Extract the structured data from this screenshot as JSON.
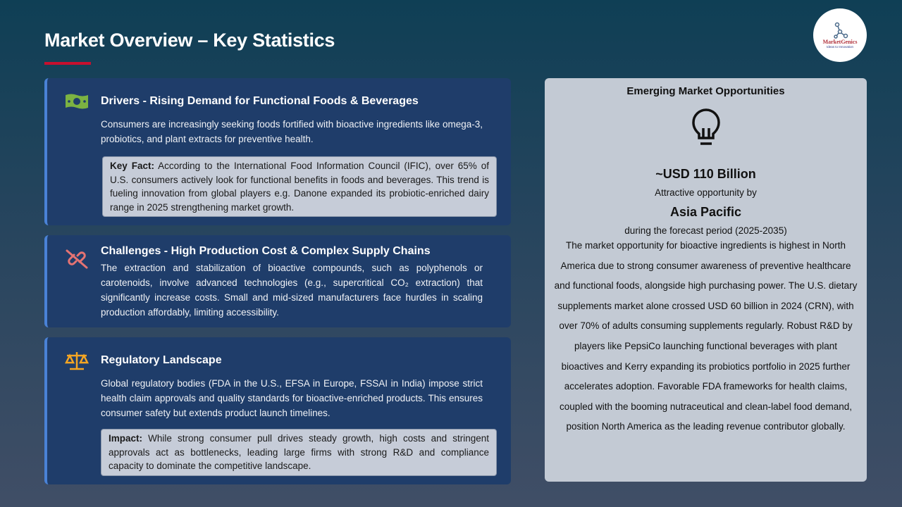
{
  "header": {
    "title": "Market Overview – Key Statistics",
    "logo_name": "MarketGenics",
    "logo_tagline": "Ideas to Innovation"
  },
  "drivers": {
    "icon": "money-icon",
    "title": "Drivers - Rising Demand for Functional Foods & Beverages",
    "text": "Consumers are increasingly seeking foods fortified with bioactive ingredients like omega-3, probiotics, and plant extracts for preventive health.",
    "fact_label": "Key Fact:",
    "fact": " According to the International Food Information Council (IFIC), over 65% of U.S. consumers actively look for functional benefits in foods and beverages. This trend is fueling innovation from global players e.g. Danone expanded its probiotic-enriched dairy range in 2025 strengthening market growth."
  },
  "challenges": {
    "icon": "broken-link-icon",
    "title": "Challenges - High Production Cost & Complex Supply Chains",
    "text": "The extraction and stabilization of bioactive compounds, such as polyphenols or carotenoids, involve advanced technologies (e.g., supercritical CO₂ extraction) that significantly increase costs. Small and mid-sized manufacturers face hurdles in scaling production affordably, limiting accessibility."
  },
  "regulatory": {
    "icon": "scales-icon",
    "title": "Regulatory Landscape",
    "text": "Global regulatory bodies (FDA in the U.S., EFSA in Europe, FSSAI in India) impose strict health claim approvals and quality standards for bioactive-enriched products. This ensures consumer safety but extends product launch timelines.",
    "impact_label": "Impact:",
    "impact": " While strong consumer pull drives steady growth, high costs and stringent approvals act as bottlenecks, leading large firms with strong R&D and compliance capacity to dominate the competitive landscape."
  },
  "opportunity": {
    "title": "Emerging Market Opportunities",
    "icon": "lightbulb-icon",
    "amount": "~USD 110 Billion",
    "sub": "Attractive opportunity by",
    "region": "Asia Pacific",
    "period": "during the forecast period (2025-2035)",
    "description": "The market opportunity for bioactive ingredients is highest in North America due to strong consumer awareness of preventive healthcare and functional foods, alongside high purchasing power. The U.S. dietary supplements market alone crossed USD 60 billion in 2024 (CRN), with over 70% of adults consuming supplements regularly. Robust R&D by players like PepsiCo launching functional beverages with plant bioactives and Kerry expanding its probiotics portfolio in 2025 further accelerates adoption. Favorable FDA frameworks for health claims, coupled with the booming nutraceutical and clean-label food demand, position North America as the leading revenue contributor globally."
  }
}
